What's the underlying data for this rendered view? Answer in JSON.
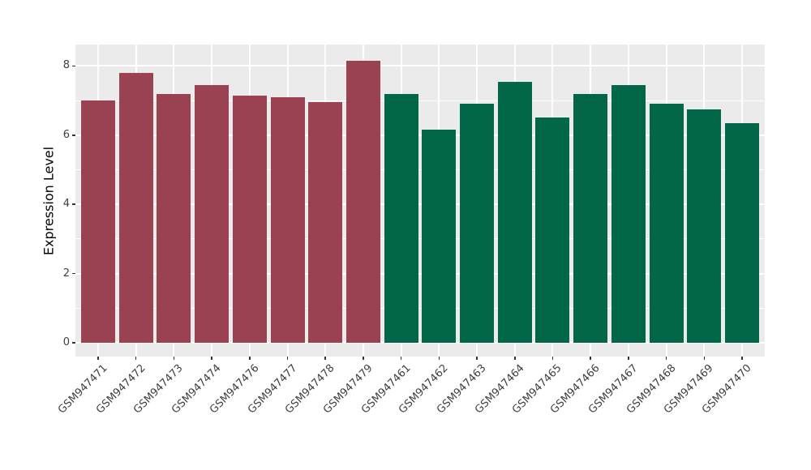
{
  "figure": {
    "background": "#ffffff",
    "panel_background": "#ebebeb",
    "gridline_color": "#ffffff",
    "axis_text_color": "#404040",
    "tick_color": "#333333"
  },
  "chart_data": {
    "type": "bar",
    "title": "",
    "xlabel": "",
    "ylabel": "Expression Level",
    "yticks": [
      0,
      2,
      4,
      6,
      8
    ],
    "yticks_minor": [
      1,
      3,
      5,
      7
    ],
    "ylim": [
      -0.4,
      8.62
    ],
    "grid": "major+minor horizontal, vertical at category centers",
    "legend": "none",
    "bar_width_ratio": 0.9,
    "x_label_rotation_deg": 45,
    "series": [
      {
        "name": "group-red",
        "color": "#9b4252",
        "categories": [
          "GSM947471",
          "GSM947472",
          "GSM947473",
          "GSM947474",
          "GSM947476",
          "GSM947477",
          "GSM947478",
          "GSM947479"
        ],
        "values": [
          7.0,
          7.8,
          7.2,
          7.45,
          7.15,
          7.1,
          6.95,
          8.15
        ]
      },
      {
        "name": "group-green",
        "color": "#016748",
        "categories": [
          "GSM947461",
          "GSM947462",
          "GSM947463",
          "GSM947464",
          "GSM947465",
          "GSM947466",
          "GSM947467",
          "GSM947468",
          "GSM947469",
          "GSM947470"
        ],
        "values": [
          7.2,
          6.15,
          6.9,
          7.55,
          6.5,
          7.2,
          7.45,
          6.9,
          6.75,
          6.35
        ]
      }
    ]
  }
}
